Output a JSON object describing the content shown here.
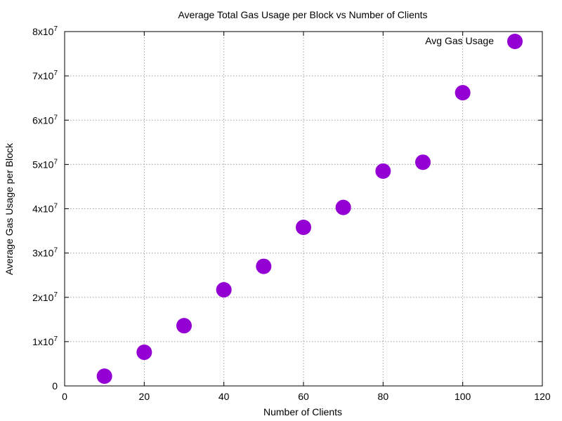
{
  "colors": {
    "point": "#9400d3",
    "grid": "#a0a0a0",
    "axis": "#000000"
  },
  "chart_data": {
    "type": "scatter",
    "title": "Average Total Gas Usage per Block vs Number of Clients",
    "xlabel": "Number of Clients",
    "ylabel": "Average Gas Usage per Block",
    "xlim": [
      0,
      120
    ],
    "ylim": [
      0,
      80000000
    ],
    "grid": true,
    "legend_position": "top-right",
    "x_ticks": [
      {
        "value": 0,
        "label": "0"
      },
      {
        "value": 20,
        "label": "20"
      },
      {
        "value": 40,
        "label": "40"
      },
      {
        "value": 60,
        "label": "60"
      },
      {
        "value": 80,
        "label": "80"
      },
      {
        "value": 100,
        "label": "100"
      },
      {
        "value": 120,
        "label": "120"
      }
    ],
    "y_ticks": [
      {
        "value": 0,
        "mantissa": "0",
        "exponent": ""
      },
      {
        "value": 10000000,
        "mantissa": "1x10",
        "exponent": "7"
      },
      {
        "value": 20000000,
        "mantissa": "2x10",
        "exponent": "7"
      },
      {
        "value": 30000000,
        "mantissa": "3x10",
        "exponent": "7"
      },
      {
        "value": 40000000,
        "mantissa": "4x10",
        "exponent": "7"
      },
      {
        "value": 50000000,
        "mantissa": "5x10",
        "exponent": "7"
      },
      {
        "value": 60000000,
        "mantissa": "6x10",
        "exponent": "7"
      },
      {
        "value": 70000000,
        "mantissa": "7x10",
        "exponent": "7"
      },
      {
        "value": 80000000,
        "mantissa": "8x10",
        "exponent": "7"
      }
    ],
    "series": [
      {
        "name": "Avg Gas Usage",
        "color": "#9400d3",
        "x": [
          10,
          20,
          30,
          40,
          50,
          60,
          70,
          80,
          90,
          100
        ],
        "y": [
          2200000,
          7600000,
          13600000,
          21700000,
          27000000,
          35800000,
          40300000,
          48500000,
          50500000,
          66200000
        ]
      }
    ]
  }
}
